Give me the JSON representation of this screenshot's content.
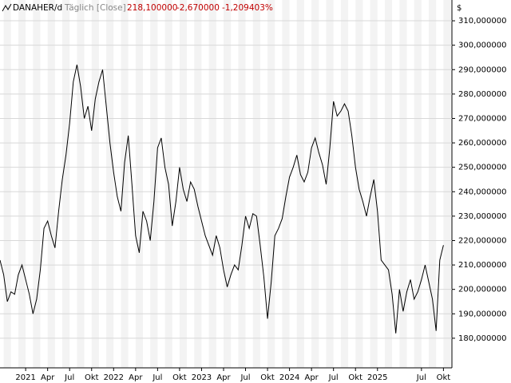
{
  "chart_data": {
    "type": "line",
    "title": "DANAHER/d",
    "subtitle": "Täglich [Close]",
    "quote": {
      "last": "218,100000",
      "change": "-2,670000",
      "change_pct": "-1,209403%"
    },
    "ylabel": "$",
    "color": "#000000",
    "categories": [
      null,
      null,
      null,
      null,
      null,
      null,
      null,
      "2021",
      null,
      null,
      null,
      null,
      null,
      "Apr",
      null,
      null,
      null,
      null,
      null,
      "Jul",
      null,
      null,
      null,
      null,
      null,
      "Okt",
      null,
      null,
      null,
      null,
      null,
      "2022",
      null,
      null,
      null,
      null,
      null,
      "Apr",
      null,
      null,
      null,
      null,
      null,
      "Jul",
      null,
      null,
      null,
      null,
      null,
      "Okt",
      null,
      null,
      null,
      null,
      null,
      "2023",
      null,
      null,
      null,
      null,
      null,
      "Apr",
      null,
      null,
      null,
      null,
      null,
      "Jul",
      null,
      null,
      null,
      null,
      null,
      "Okt",
      null,
      null,
      null,
      null,
      null,
      "2024",
      null,
      null,
      null,
      null,
      null,
      "Apr",
      null,
      null,
      null,
      null,
      null,
      "Jul",
      null,
      null,
      null,
      null,
      null,
      "Okt",
      null,
      null,
      null,
      null,
      null,
      "2025",
      null,
      null,
      null,
      null,
      null,
      null,
      null,
      null,
      null,
      null,
      null,
      "Jul",
      null,
      null,
      null,
      null,
      null,
      "Okt"
    ],
    "values": [
      212,
      206,
      195,
      199,
      198,
      206,
      210,
      204,
      198,
      190,
      196,
      208,
      225,
      228,
      222,
      217,
      232,
      245,
      255,
      268,
      285,
      292,
      283,
      270,
      275,
      265,
      278,
      285,
      290,
      275,
      260,
      248,
      238,
      232,
      252,
      263,
      243,
      222,
      215,
      232,
      228,
      220,
      236,
      258,
      262,
      250,
      243,
      226,
      236,
      250,
      241,
      236,
      244,
      241,
      234,
      228,
      222,
      218,
      214,
      222,
      217,
      208,
      201,
      206,
      210,
      208,
      218,
      230,
      225,
      231,
      230,
      218,
      205,
      188,
      203,
      222,
      225,
      229,
      238,
      246,
      250,
      255,
      247,
      244,
      248,
      258,
      262,
      256,
      251,
      243,
      258,
      277,
      271,
      273,
      276,
      273,
      263,
      250,
      241,
      236,
      230,
      238,
      245,
      232,
      212,
      210,
      208,
      198,
      182,
      200,
      191,
      199,
      204,
      196,
      199,
      204,
      210,
      203,
      196,
      183,
      212,
      218.1
    ],
    "ylim": [
      168.2,
      315.9
    ],
    "yticks": [
      {
        "value": 180,
        "label": "180,000000"
      },
      {
        "value": 190,
        "label": "190,000000"
      },
      {
        "value": 200,
        "label": "200,000000"
      },
      {
        "value": 210,
        "label": "210,000000"
      },
      {
        "value": 220,
        "label": "220,000000"
      },
      {
        "value": 230,
        "label": "230,000000"
      },
      {
        "value": 240,
        "label": "240,000000"
      },
      {
        "value": 250,
        "label": "250,000000"
      },
      {
        "value": 260,
        "label": "260,000000"
      },
      {
        "value": 270,
        "label": "270,000000"
      },
      {
        "value": 280,
        "label": "280,000000"
      },
      {
        "value": 290,
        "label": "290,000000"
      },
      {
        "value": 300,
        "label": "300,000000"
      },
      {
        "value": 310,
        "label": "310,000000"
      }
    ],
    "grid": true
  }
}
